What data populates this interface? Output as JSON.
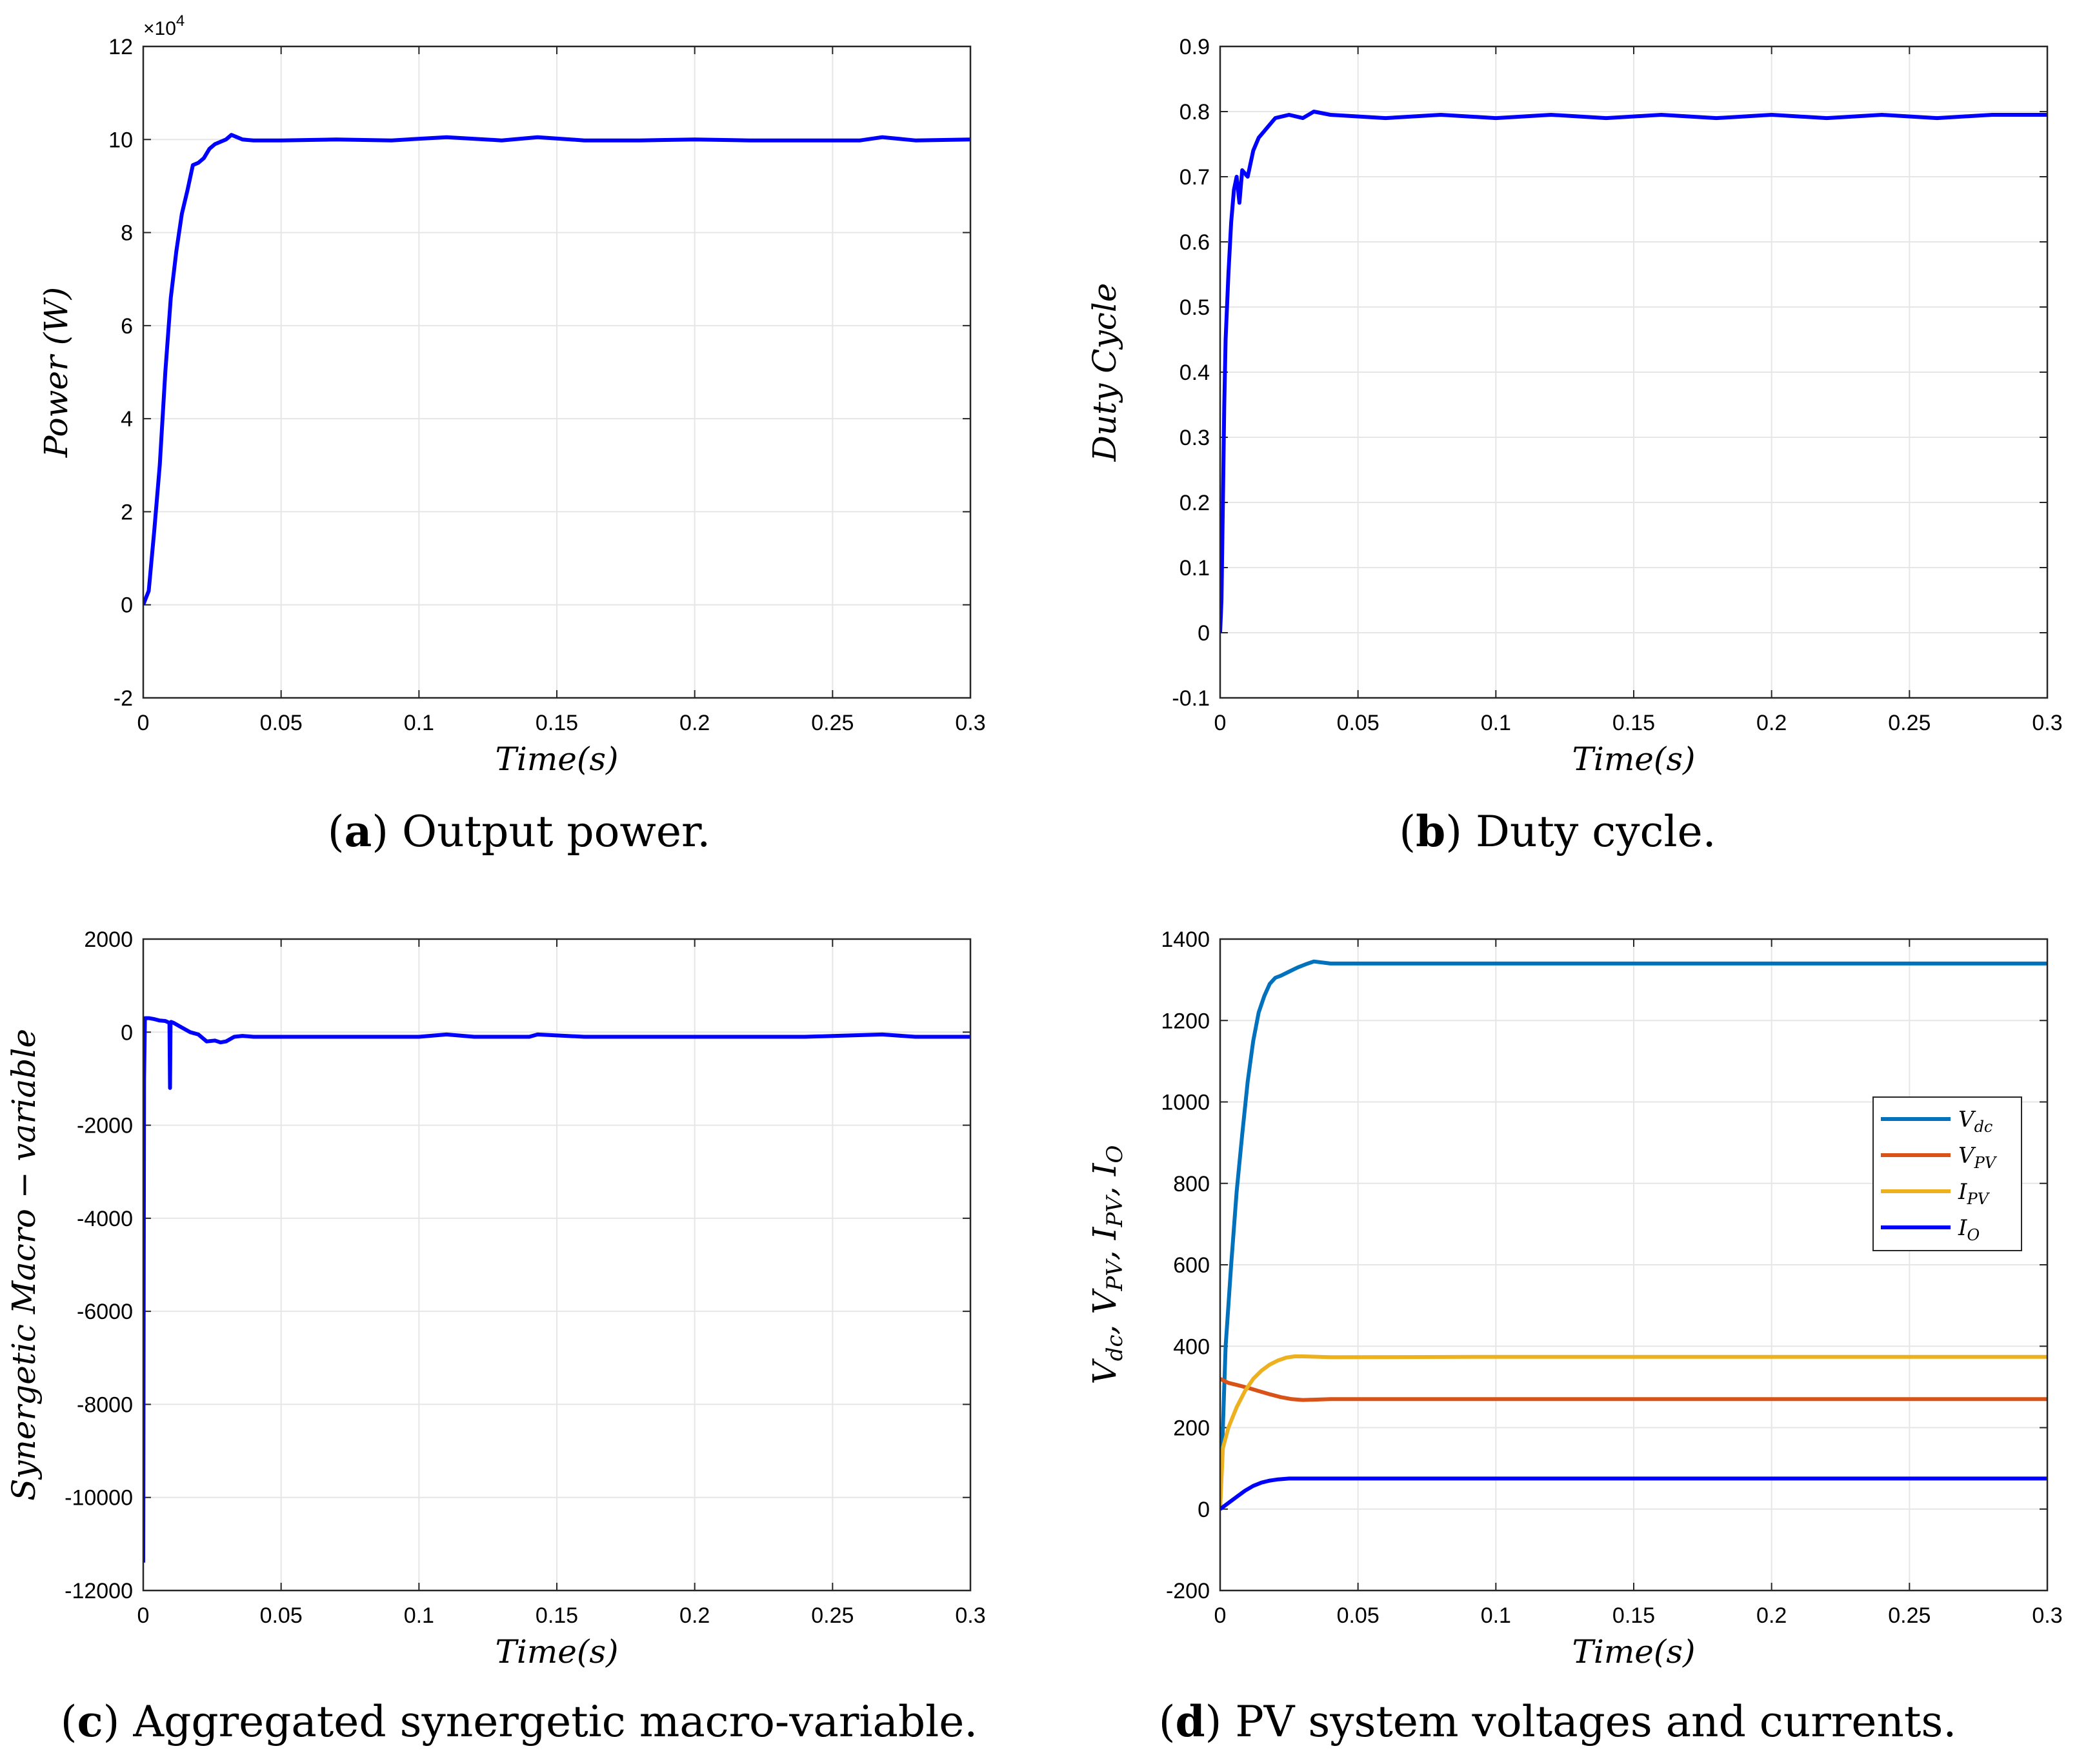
{
  "chart_data": [
    {
      "id": "a",
      "type": "line",
      "caption_letter": "a",
      "caption_text": "Output power.",
      "xlabel": "Time(s)",
      "ylabel": "Power (W)",
      "y_exponent_label": "×10",
      "y_exponent_power": "4",
      "xlim": [
        0,
        0.3
      ],
      "ylim": [
        -2,
        12
      ],
      "xticks": [
        "0",
        "0.05",
        "0.1",
        "0.15",
        "0.2",
        "0.25",
        "0.3"
      ],
      "yticks": [
        "-2",
        "0",
        "2",
        "4",
        "6",
        "8",
        "10",
        "12"
      ],
      "series": [
        {
          "name": "Power",
          "color": "#0000ff",
          "x": [
            0,
            0.002,
            0.004,
            0.006,
            0.008,
            0.01,
            0.012,
            0.014,
            0.016,
            0.018,
            0.02,
            0.022,
            0.024,
            0.026,
            0.028,
            0.03,
            0.032,
            0.034,
            0.036,
            0.04,
            0.05,
            0.07,
            0.09,
            0.11,
            0.13,
            0.143,
            0.16,
            0.18,
            0.2,
            0.22,
            0.24,
            0.26,
            0.268,
            0.28,
            0.3
          ],
          "y": [
            0,
            0.3,
            1.6,
            3.0,
            5.0,
            6.6,
            7.6,
            8.4,
            8.9,
            9.45,
            9.5,
            9.6,
            9.8,
            9.9,
            9.95,
            10.0,
            10.1,
            10.05,
            10.0,
            9.98,
            9.98,
            10.0,
            9.98,
            10.05,
            9.98,
            10.05,
            9.98,
            9.98,
            10.0,
            9.98,
            9.98,
            9.98,
            10.05,
            9.98,
            10.0
          ]
        }
      ]
    },
    {
      "id": "b",
      "type": "line",
      "caption_letter": "b",
      "caption_text": "Duty cycle.",
      "xlabel": "Time(s)",
      "ylabel": "Duty Cycle",
      "xlim": [
        0,
        0.3
      ],
      "ylim": [
        -0.1,
        0.9
      ],
      "xticks": [
        "0",
        "0.05",
        "0.1",
        "0.15",
        "0.2",
        "0.25",
        "0.3"
      ],
      "yticks": [
        "-0.1",
        "0",
        "0.1",
        "0.2",
        "0.3",
        "0.4",
        "0.5",
        "0.6",
        "0.7",
        "0.8",
        "0.9"
      ],
      "series": [
        {
          "name": "Duty cycle",
          "color": "#0000ff",
          "x": [
            0,
            0.0005,
            0.001,
            0.0015,
            0.002,
            0.003,
            0.004,
            0.005,
            0.006,
            0.007,
            0.008,
            0.01,
            0.012,
            0.014,
            0.016,
            0.018,
            0.02,
            0.025,
            0.03,
            0.034,
            0.04,
            0.06,
            0.08,
            0.1,
            0.12,
            0.14,
            0.16,
            0.18,
            0.2,
            0.22,
            0.24,
            0.26,
            0.28,
            0.3
          ],
          "y": [
            0,
            0.05,
            0.2,
            0.35,
            0.45,
            0.55,
            0.63,
            0.68,
            0.7,
            0.66,
            0.71,
            0.7,
            0.74,
            0.76,
            0.77,
            0.78,
            0.79,
            0.795,
            0.79,
            0.8,
            0.795,
            0.79,
            0.795,
            0.79,
            0.795,
            0.79,
            0.795,
            0.79,
            0.795,
            0.79,
            0.795,
            0.79,
            0.795,
            0.795
          ]
        }
      ]
    },
    {
      "id": "c",
      "type": "line",
      "caption_letter": "c",
      "caption_text": "Aggregated synergetic macro-variable.",
      "xlabel": "Time(s)",
      "ylabel": "Synergetic Macro − variable",
      "xlim": [
        0,
        0.3
      ],
      "ylim": [
        -12000,
        2000
      ],
      "xticks": [
        "0",
        "0.05",
        "0.1",
        "0.15",
        "0.2",
        "0.25",
        "0.3"
      ],
      "yticks": [
        "-12000",
        "-10000",
        "-8000",
        "-6000",
        "-4000",
        "-2000",
        "0",
        "2000"
      ],
      "series": [
        {
          "name": "Macro-variable",
          "color": "#0000ff",
          "x": [
            0,
            0.0003,
            0.0006,
            0.001,
            0.002,
            0.004,
            0.006,
            0.008,
            0.0095,
            0.0097,
            0.0099,
            0.0101,
            0.011,
            0.014,
            0.017,
            0.02,
            0.023,
            0.026,
            0.028,
            0.03,
            0.033,
            0.036,
            0.04,
            0.06,
            0.08,
            0.1,
            0.11,
            0.12,
            0.14,
            0.143,
            0.16,
            0.2,
            0.24,
            0.268,
            0.28,
            0.3
          ],
          "y": [
            -11400,
            -1000,
            300,
            300,
            300,
            280,
            250,
            240,
            200,
            -1200,
            200,
            220,
            200,
            100,
            0,
            -50,
            -200,
            -180,
            -220,
            -200,
            -100,
            -80,
            -100,
            -100,
            -100,
            -100,
            -50,
            -100,
            -100,
            -50,
            -100,
            -100,
            -100,
            -50,
            -100,
            -100
          ]
        }
      ]
    },
    {
      "id": "d",
      "type": "line",
      "caption_letter": "d",
      "caption_text": "PV system voltages and currents.",
      "xlabel": "Time(s)",
      "ylabel": "V_dc, V_PV, I_PV, I_O",
      "xlim": [
        0,
        0.3
      ],
      "ylim": [
        -200,
        1400
      ],
      "xticks": [
        "0",
        "0.05",
        "0.1",
        "0.15",
        "0.2",
        "0.25",
        "0.3"
      ],
      "yticks": [
        "-200",
        "0",
        "200",
        "400",
        "600",
        "800",
        "1000",
        "1200",
        "1400"
      ],
      "legend_position": "middle-right",
      "series": [
        {
          "name": "V_dc",
          "label_main": "V",
          "label_sub": "dc",
          "color": "#0072bd",
          "x": [
            0,
            0.002,
            0.004,
            0.006,
            0.008,
            0.01,
            0.012,
            0.014,
            0.016,
            0.018,
            0.02,
            0.022,
            0.025,
            0.028,
            0.031,
            0.034,
            0.04,
            0.06,
            0.1,
            0.15,
            0.2,
            0.25,
            0.3
          ],
          "y": [
            0,
            400,
            600,
            780,
            920,
            1050,
            1150,
            1220,
            1260,
            1290,
            1305,
            1310,
            1320,
            1330,
            1338,
            1345,
            1340,
            1340,
            1340,
            1340,
            1340,
            1340,
            1340
          ]
        },
        {
          "name": "V_PV",
          "label_main": "V",
          "label_sub": "PV",
          "color": "#d95319",
          "x": [
            0,
            0.003,
            0.006,
            0.01,
            0.014,
            0.018,
            0.022,
            0.026,
            0.03,
            0.04,
            0.1,
            0.2,
            0.3
          ],
          "y": [
            320,
            310,
            305,
            298,
            290,
            282,
            275,
            270,
            268,
            270,
            270,
            270,
            270
          ]
        },
        {
          "name": "I_PV",
          "label_main": "I",
          "label_sub": "PV",
          "color": "#edb120",
          "x": [
            0,
            0.001,
            0.003,
            0.006,
            0.009,
            0.012,
            0.015,
            0.018,
            0.021,
            0.024,
            0.027,
            0.03,
            0.04,
            0.1,
            0.2,
            0.3
          ],
          "y": [
            0,
            150,
            200,
            250,
            290,
            320,
            340,
            355,
            365,
            372,
            375,
            375,
            373,
            374,
            374,
            374
          ]
        },
        {
          "name": "I_O",
          "label_main": "I",
          "label_sub": "O",
          "color": "#0000ff",
          "x": [
            0,
            0.003,
            0.006,
            0.009,
            0.012,
            0.015,
            0.018,
            0.021,
            0.025,
            0.03,
            0.04,
            0.1,
            0.2,
            0.3
          ],
          "y": [
            0,
            15,
            30,
            45,
            57,
            65,
            70,
            73,
            75,
            75,
            75,
            75,
            75,
            75
          ]
        }
      ]
    }
  ]
}
